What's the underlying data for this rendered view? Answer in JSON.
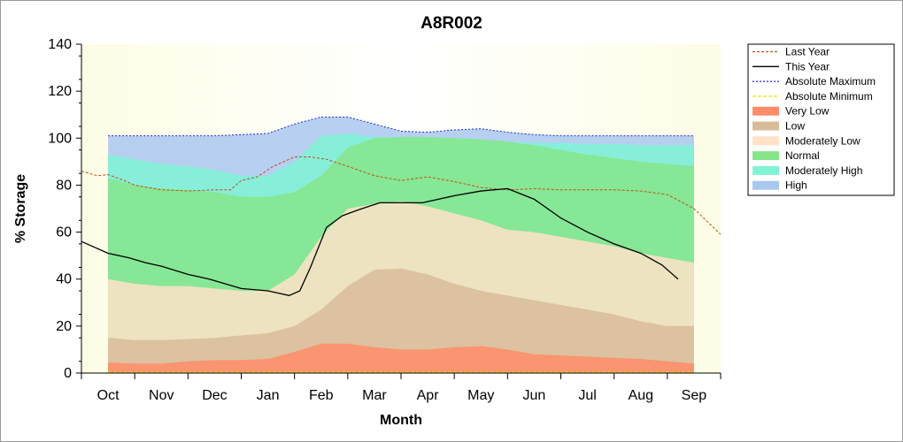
{
  "chart_data": {
    "type": "area",
    "title": "A8R002",
    "xlabel": "Month",
    "ylabel": "% Storage",
    "ylim": [
      0,
      140
    ],
    "yticks": [
      0,
      20,
      40,
      60,
      80,
      100,
      120,
      140
    ],
    "xlim": [
      0,
      12
    ],
    "months": [
      "Oct",
      "Nov",
      "Dec",
      "Jan",
      "Feb",
      "Mar",
      "Apr",
      "May",
      "Jun",
      "Jul",
      "Aug",
      "Sep"
    ],
    "grid": false,
    "legend_position": "right",
    "bands_x": [
      0.5,
      1,
      1.5,
      2,
      2.5,
      3,
      3.5,
      4,
      4.5,
      5,
      5.5,
      6,
      6.5,
      7,
      7.5,
      8,
      8.5,
      9,
      9.5,
      10,
      10.5,
      11,
      11.5
    ],
    "bands": [
      {
        "name": "Very Low",
        "color": "#ff8c69",
        "upper": [
          4.5,
          4,
          4,
          5,
          5.5,
          5.5,
          6,
          9,
          12.5,
          12.5,
          11,
          10,
          10,
          11,
          11.5,
          10,
          8,
          7.5,
          7,
          6.5,
          6,
          5,
          4
        ]
      },
      {
        "name": "Low",
        "color": "#d8bc9a",
        "upper": [
          15,
          14,
          14,
          14.5,
          15,
          16,
          17,
          20,
          27,
          37,
          44,
          44.5,
          42,
          38,
          35,
          33,
          31,
          29,
          27,
          25,
          22,
          20,
          20
        ]
      },
      {
        "name": "Moderately Low",
        "color": "#ffe2c8",
        "upper": [
          40,
          38,
          37,
          37,
          36,
          35,
          35,
          42,
          58,
          70,
          72,
          73,
          71,
          68,
          65,
          61,
          60,
          58,
          56,
          54,
          51,
          49,
          47
        ]
      },
      {
        "name": "Normal",
        "color": "#86e58a",
        "upper": [
          83,
          80,
          78.5,
          78,
          77,
          75,
          75,
          77,
          84,
          96,
          100,
          100.5,
          100.5,
          100,
          99.5,
          98.5,
          97,
          95,
          93,
          91.5,
          90,
          89,
          88
        ]
      },
      {
        "name": "Moderately High",
        "color": "#7ff3d6",
        "upper": [
          93,
          91,
          89,
          88,
          86.5,
          84,
          84,
          90,
          101,
          102,
          100.5,
          100.5,
          100.5,
          100,
          99.5,
          98.5,
          98,
          98,
          97.5,
          97.5,
          97,
          97,
          97
        ]
      },
      {
        "name": "High",
        "color": "#aac7ee",
        "upper": [
          101,
          101,
          101,
          101,
          101,
          101.5,
          102,
          106,
          109,
          109,
          106,
          103,
          102.5,
          103.5,
          104,
          102.5,
          101.5,
          101,
          101,
          101,
          101,
          101,
          101
        ]
      }
    ],
    "series": [
      {
        "name": "Last Year",
        "color": "#c05018",
        "dash": "3,2",
        "width": 1,
        "x": [
          0,
          0.3,
          0.5,
          0.8,
          1,
          1.5,
          2,
          2.5,
          2.8,
          3,
          3.3,
          3.6,
          4,
          4.3,
          4.6,
          5,
          5.5,
          6,
          6.5,
          7,
          7.5,
          8,
          8.5,
          9,
          9.5,
          10,
          10.5,
          11,
          11.5,
          12
        ],
        "y": [
          86,
          84,
          84.5,
          82,
          80,
          78,
          77.5,
          78,
          78,
          82,
          83.5,
          88,
          92,
          92,
          91,
          88,
          84,
          82,
          83.5,
          81.5,
          79,
          78,
          78.5,
          78,
          78,
          78,
          77.5,
          76,
          70,
          59
        ]
      },
      {
        "name": "This Year",
        "color": "#000000",
        "dash": "",
        "width": 1.3,
        "x": [
          0,
          0.5,
          0.9,
          1.2,
          1.5,
          2,
          2.4,
          3,
          3.5,
          3.9,
          4.1,
          4.3,
          4.6,
          4.9,
          5.2,
          5.6,
          6,
          6.4,
          7,
          7.5,
          8,
          8.5,
          9,
          9.5,
          10,
          10.5,
          10.9,
          11.2
        ],
        "y": [
          56,
          51,
          49,
          47,
          45.5,
          42,
          40,
          36,
          35,
          33,
          35,
          45,
          62,
          67,
          69.5,
          72.5,
          72.5,
          72.5,
          75.5,
          77.5,
          78.5,
          74,
          66,
          60,
          55,
          51,
          46,
          40
        ]
      },
      {
        "name": "Absolute Maximum",
        "color": "#1a2ad8",
        "dash": "2,2",
        "width": 1,
        "x": [
          0.5,
          1,
          1.5,
          2,
          2.5,
          3,
          3.5,
          4,
          4.5,
          5,
          5.5,
          6,
          6.5,
          7,
          7.5,
          8,
          8.5,
          9,
          9.5,
          10,
          10.5,
          11,
          11.5
        ],
        "y": [
          101,
          101,
          101,
          101,
          101,
          101.5,
          102,
          106,
          109,
          109,
          106,
          103,
          102.5,
          103.5,
          104,
          102.5,
          101.5,
          101,
          101,
          101,
          101,
          101,
          101
        ]
      },
      {
        "name": "Absolute Minimum",
        "color": "#e6e600",
        "dash": "4,2",
        "width": 1.5,
        "x": [
          0.5,
          11.5
        ],
        "y": [
          0.3,
          0.3
        ]
      }
    ],
    "legend": [
      {
        "label": "Last Year",
        "kind": "line",
        "color": "#c05018",
        "dash": "3,2"
      },
      {
        "label": "This Year",
        "kind": "line",
        "color": "#000000",
        "dash": ""
      },
      {
        "label": "Absolute Maximum",
        "kind": "line",
        "color": "#1a2ad8",
        "dash": "2,2"
      },
      {
        "label": "Absolute Minimum",
        "kind": "line",
        "color": "#e6e600",
        "dash": "4,2"
      },
      {
        "label": "Very Low",
        "kind": "area",
        "color": "#ff8c69"
      },
      {
        "label": "Low",
        "kind": "area",
        "color": "#d8bc9a"
      },
      {
        "label": "Moderately Low",
        "kind": "area",
        "color": "#ffe2c8"
      },
      {
        "label": "Normal",
        "kind": "area",
        "color": "#86e58a"
      },
      {
        "label": "Moderately High",
        "kind": "area",
        "color": "#7ff3d6"
      },
      {
        "label": "High",
        "kind": "area",
        "color": "#aac7ee"
      }
    ]
  }
}
